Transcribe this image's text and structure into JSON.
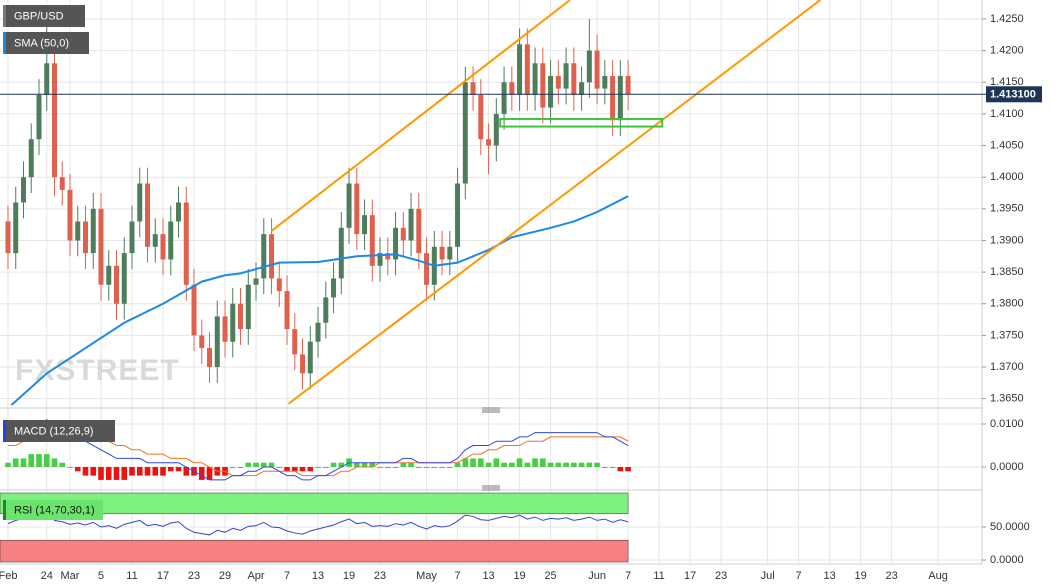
{
  "chart_data": {
    "type": "candlestick",
    "title": "GBP/USD",
    "watermark": "FXSTREET",
    "bull_color": "#4e7d5b",
    "bear_color": "#e0604e",
    "grid": true,
    "xlim": [
      -1.03,
      125.4
    ],
    "xticks": [
      {
        "value": 0,
        "label": "Feb"
      },
      {
        "value": 5,
        "label": "24"
      },
      {
        "value": 8,
        "label": "Mar"
      },
      {
        "value": 12,
        "label": "5"
      },
      {
        "value": 16,
        "label": "11"
      },
      {
        "value": 20,
        "label": "17"
      },
      {
        "value": 24,
        "label": "23"
      },
      {
        "value": 28,
        "label": "29"
      },
      {
        "value": 32,
        "label": "Apr"
      },
      {
        "value": 36,
        "label": "7"
      },
      {
        "value": 40,
        "label": "13"
      },
      {
        "value": 44,
        "label": "19"
      },
      {
        "value": 48,
        "label": "23"
      },
      {
        "value": 54,
        "label": "May"
      },
      {
        "value": 58,
        "label": "7"
      },
      {
        "value": 62,
        "label": "13"
      },
      {
        "value": 66,
        "label": "19"
      },
      {
        "value": 70,
        "label": "25"
      },
      {
        "value": 76,
        "label": "Jun"
      },
      {
        "value": 80,
        "label": "7"
      },
      {
        "value": 84,
        "label": "11"
      },
      {
        "value": 88,
        "label": "17"
      },
      {
        "value": 92,
        "label": "23"
      },
      {
        "value": 98,
        "label": "Jul"
      },
      {
        "value": 102,
        "label": "7"
      },
      {
        "value": 106,
        "label": "13"
      },
      {
        "value": 110,
        "label": "19"
      },
      {
        "value": 114,
        "label": "23"
      },
      {
        "value": 120,
        "label": "Aug"
      }
    ],
    "ylim": [
      1.364,
      1.428
    ],
    "yticks": [
      {
        "value": 1.425,
        "label": "1.4250"
      },
      {
        "value": 1.42,
        "label": "1.4200"
      },
      {
        "value": 1.415,
        "label": "1.4150"
      },
      {
        "value": 1.41,
        "label": "1.4100"
      },
      {
        "value": 1.405,
        "label": "1.4050"
      },
      {
        "value": 1.4,
        "label": "1.4000"
      },
      {
        "value": 1.395,
        "label": "1.3950"
      },
      {
        "value": 1.39,
        "label": "1.3900"
      },
      {
        "value": 1.385,
        "label": "1.3850"
      },
      {
        "value": 1.38,
        "label": "1.3800"
      },
      {
        "value": 1.375,
        "label": "1.3750"
      },
      {
        "value": 1.37,
        "label": "1.3700"
      },
      {
        "value": 1.365,
        "label": "1.3650"
      }
    ],
    "last_price": {
      "value": 1.4131,
      "label": "1.413100"
    },
    "ohlc": [
      [
        1.393,
        1.3955,
        1.3855,
        1.388
      ],
      [
        1.388,
        1.3985,
        1.3855,
        1.396
      ],
      [
        1.396,
        1.4025,
        1.3935,
        1.4
      ],
      [
        1.4,
        1.4085,
        1.3975,
        1.406
      ],
      [
        1.406,
        1.4155,
        1.4035,
        1.413
      ],
      [
        1.413,
        1.424,
        1.4105,
        1.418
      ],
      [
        1.418,
        1.4205,
        1.397,
        1.4
      ],
      [
        1.4,
        1.4025,
        1.3955,
        1.398
      ],
      [
        1.398,
        1.4005,
        1.3875,
        1.39
      ],
      [
        1.39,
        1.3955,
        1.3875,
        1.393
      ],
      [
        1.393,
        1.3955,
        1.3855,
        1.388
      ],
      [
        1.388,
        1.3975,
        1.3855,
        1.395
      ],
      [
        1.395,
        1.3975,
        1.3805,
        1.383
      ],
      [
        1.383,
        1.3885,
        1.3805,
        1.386
      ],
      [
        1.386,
        1.3885,
        1.3775,
        1.38
      ],
      [
        1.38,
        1.3905,
        1.3775,
        1.388
      ],
      [
        1.388,
        1.3955,
        1.3855,
        1.393
      ],
      [
        1.393,
        1.4015,
        1.3905,
        1.399
      ],
      [
        1.399,
        1.4015,
        1.3865,
        1.389
      ],
      [
        1.389,
        1.3935,
        1.3865,
        1.391
      ],
      [
        1.391,
        1.3935,
        1.3845,
        1.387
      ],
      [
        1.387,
        1.3955,
        1.3845,
        1.393
      ],
      [
        1.393,
        1.3985,
        1.3905,
        1.396
      ],
      [
        1.396,
        1.3985,
        1.3805,
        1.383
      ],
      [
        1.383,
        1.3855,
        1.3725,
        1.375
      ],
      [
        1.375,
        1.3775,
        1.3705,
        1.373
      ],
      [
        1.373,
        1.3755,
        1.3675,
        1.37
      ],
      [
        1.37,
        1.3805,
        1.3675,
        1.378
      ],
      [
        1.378,
        1.3805,
        1.3715,
        1.374
      ],
      [
        1.374,
        1.3825,
        1.3715,
        1.38
      ],
      [
        1.38,
        1.3825,
        1.3735,
        1.376
      ],
      [
        1.376,
        1.3855,
        1.3735,
        1.383
      ],
      [
        1.383,
        1.3865,
        1.3805,
        1.384
      ],
      [
        1.384,
        1.3935,
        1.3815,
        1.391
      ],
      [
        1.391,
        1.3935,
        1.3815,
        1.384
      ],
      [
        1.384,
        1.3865,
        1.3795,
        1.382
      ],
      [
        1.382,
        1.3845,
        1.3735,
        1.376
      ],
      [
        1.376,
        1.3785,
        1.3695,
        1.372
      ],
      [
        1.372,
        1.3745,
        1.3665,
        1.369
      ],
      [
        1.369,
        1.3765,
        1.3665,
        1.374
      ],
      [
        1.374,
        1.3795,
        1.3715,
        1.377
      ],
      [
        1.377,
        1.3835,
        1.3745,
        1.381
      ],
      [
        1.381,
        1.3865,
        1.3785,
        1.384
      ],
      [
        1.384,
        1.3945,
        1.3815,
        1.392
      ],
      [
        1.392,
        1.4015,
        1.3895,
        1.399
      ],
      [
        1.399,
        1.4015,
        1.3885,
        1.391
      ],
      [
        1.391,
        1.3965,
        1.3885,
        1.394
      ],
      [
        1.394,
        1.3965,
        1.3835,
        1.386
      ],
      [
        1.386,
        1.3905,
        1.3835,
        1.388
      ],
      [
        1.388,
        1.3905,
        1.3845,
        1.387
      ],
      [
        1.387,
        1.3945,
        1.3845,
        1.392
      ],
      [
        1.392,
        1.3945,
        1.3875,
        1.39
      ],
      [
        1.39,
        1.3975,
        1.3875,
        1.395
      ],
      [
        1.395,
        1.3975,
        1.3855,
        1.388
      ],
      [
        1.388,
        1.3905,
        1.3805,
        1.383
      ],
      [
        1.383,
        1.3915,
        1.3805,
        1.389
      ],
      [
        1.389,
        1.3915,
        1.3845,
        1.387
      ],
      [
        1.387,
        1.3915,
        1.3845,
        1.389
      ],
      [
        1.389,
        1.4015,
        1.3865,
        1.399
      ],
      [
        1.399,
        1.4175,
        1.3965,
        1.415
      ],
      [
        1.415,
        1.4175,
        1.4105,
        1.413
      ],
      [
        1.413,
        1.4155,
        1.4035,
        1.406
      ],
      [
        1.406,
        1.4085,
        1.4005,
        1.405
      ],
      [
        1.405,
        1.4125,
        1.4025,
        1.41
      ],
      [
        1.41,
        1.4175,
        1.4075,
        1.415
      ],
      [
        1.415,
        1.4175,
        1.4105,
        1.413
      ],
      [
        1.413,
        1.4235,
        1.4105,
        1.421
      ],
      [
        1.421,
        1.4235,
        1.4105,
        1.413
      ],
      [
        1.413,
        1.4205,
        1.4105,
        1.418
      ],
      [
        1.418,
        1.4205,
        1.4085,
        1.411
      ],
      [
        1.411,
        1.4185,
        1.4085,
        1.416
      ],
      [
        1.416,
        1.4185,
        1.4115,
        1.414
      ],
      [
        1.414,
        1.4205,
        1.4115,
        1.418
      ],
      [
        1.418,
        1.4205,
        1.4105,
        1.413
      ],
      [
        1.413,
        1.4175,
        1.4105,
        1.415
      ],
      [
        1.415,
        1.425,
        1.4125,
        1.42
      ],
      [
        1.42,
        1.4225,
        1.4115,
        1.414
      ],
      [
        1.414,
        1.4185,
        1.4115,
        1.416
      ],
      [
        1.416,
        1.4185,
        1.4065,
        1.409
      ],
      [
        1.409,
        1.4185,
        1.4065,
        1.416
      ],
      [
        1.416,
        1.4185,
        1.4106,
        1.4131
      ]
    ],
    "sma": {
      "name": "SMA (50,0)",
      "color": "#1e88e5",
      "x": [
        0,
        5,
        10,
        15,
        20,
        25,
        28,
        30,
        35,
        40,
        45,
        50,
        53,
        55,
        58,
        62,
        65,
        70,
        73,
        76,
        80
      ],
      "values": [
        1.3635,
        1.369,
        1.373,
        1.377,
        1.38,
        1.3835,
        1.3845,
        1.3848,
        1.3865,
        1.3866,
        1.3875,
        1.3878,
        1.3868,
        1.386,
        1.3865,
        1.3885,
        1.3905,
        1.392,
        1.393,
        1.3945,
        1.397
      ]
    },
    "trendlines": [
      {
        "color": "#ff9800",
        "x": [
          34,
          72.5
        ],
        "y": [
          1.3915,
          1.428
        ]
      },
      {
        "color": "#ff9800",
        "x": [
          36.2,
          104.8
        ],
        "y": [
          1.3642,
          1.428
        ]
      }
    ],
    "zone": {
      "color": "#3cc43c",
      "x": [
        63.5,
        84.4
      ],
      "y": [
        1.408,
        1.4092
      ]
    },
    "macd": {
      "name": "MACD (12,26,9)",
      "ylim": [
        -0.00465,
        0.01256
      ],
      "yticks": [
        {
          "value": 0.01,
          "label": "0.0100"
        },
        {
          "value": 0,
          "label": "0.0000"
        }
      ],
      "macd_color": "#3048e0",
      "signal_color": "#f07020",
      "up_color": "#44d044",
      "down_color": "#ee1111",
      "macd": [
        0.006,
        0.007,
        0.008,
        0.009,
        0.01,
        0.011,
        0.01,
        0.009,
        0.008,
        0.007,
        0.006,
        0.005,
        0.004,
        0.003,
        0.002,
        0.002,
        0.002,
        0.002,
        0.001,
        0.001,
        0.001,
        0.001,
        0.001,
        0.0,
        -0.001,
        -0.002,
        -0.003,
        -0.003,
        -0.003,
        -0.002,
        -0.002,
        -0.001,
        -0.001,
        0.0,
        0.0,
        -0.001,
        -0.002,
        -0.002,
        -0.003,
        -0.003,
        -0.002,
        -0.002,
        -0.001,
        0.0,
        0.001,
        0.001,
        0.001,
        0.001,
        0.001,
        0.001,
        0.001,
        0.002,
        0.002,
        0.001,
        0.001,
        0.001,
        0.001,
        0.001,
        0.002,
        0.004,
        0.005,
        0.005,
        0.005,
        0.006,
        0.006,
        0.006,
        0.007,
        0.007,
        0.008,
        0.008,
        0.008,
        0.008,
        0.008,
        0.008,
        0.008,
        0.008,
        0.008,
        0.007,
        0.007,
        0.006,
        0.005
      ],
      "signal": [
        0.005,
        0.005,
        0.006,
        0.006,
        0.007,
        0.008,
        0.008,
        0.008,
        0.008,
        0.008,
        0.008,
        0.007,
        0.007,
        0.006,
        0.005,
        0.005,
        0.004,
        0.004,
        0.003,
        0.003,
        0.003,
        0.002,
        0.002,
        0.002,
        0.001,
        0.001,
        0.0,
        -0.001,
        -0.001,
        -0.002,
        -0.002,
        -0.002,
        -0.002,
        -0.001,
        -0.001,
        -0.001,
        -0.001,
        -0.001,
        -0.002,
        -0.002,
        -0.002,
        -0.002,
        -0.002,
        -0.001,
        -0.001,
        0.0,
        0.0,
        0.0,
        0.001,
        0.001,
        0.001,
        0.001,
        0.001,
        0.001,
        0.001,
        0.001,
        0.001,
        0.001,
        0.001,
        0.002,
        0.003,
        0.003,
        0.004,
        0.004,
        0.005,
        0.005,
        0.005,
        0.006,
        0.006,
        0.006,
        0.007,
        0.007,
        0.007,
        0.007,
        0.007,
        0.007,
        0.007,
        0.007,
        0.007,
        0.007,
        0.006
      ],
      "hist": [
        0.001,
        0.002,
        0.002,
        0.003,
        0.003,
        0.003,
        0.002,
        0.001,
        0,
        -0.001,
        -0.002,
        -0.002,
        -0.003,
        -0.003,
        -0.003,
        -0.003,
        -0.002,
        -0.002,
        -0.002,
        -0.002,
        -0.002,
        -0.001,
        -0.001,
        -0.002,
        -0.002,
        -0.003,
        -0.003,
        -0.002,
        -0.002,
        0,
        0,
        0.001,
        0.001,
        0.001,
        0.001,
        0,
        -0.001,
        -0.001,
        -0.001,
        -0.001,
        0,
        0,
        0.001,
        0.001,
        0.002,
        0.001,
        0.001,
        0.001,
        0,
        0,
        0,
        0.001,
        0.001,
        0,
        0,
        0,
        0,
        0,
        0.001,
        0.002,
        0.002,
        0.002,
        0.001,
        0.002,
        0.001,
        0.001,
        0.002,
        0.001,
        0.002,
        0.002,
        0.001,
        0.001,
        0.001,
        0.001,
        0.001,
        0.001,
        0.001,
        0,
        0,
        -0.001,
        -0.001
      ]
    },
    "rsi": {
      "name": "RSI (14,70,30,1)",
      "ylim": [
        -3,
        101.5
      ],
      "yticks": [
        {
          "value": 50,
          "label": "50.0000"
        },
        {
          "value": 0,
          "label": "0.0000"
        }
      ],
      "overbought": 70,
      "oversold": 30,
      "color": "#3344cc",
      "overbought_color": "#7ef07e",
      "oversold_color": "#f88080",
      "values": [
        55,
        60,
        63,
        66,
        70,
        72,
        60,
        58,
        54,
        56,
        53,
        57,
        50,
        52,
        48,
        54,
        57,
        60,
        52,
        54,
        51,
        56,
        58,
        48,
        42,
        40,
        38,
        45,
        42,
        48,
        45,
        51,
        52,
        57,
        50,
        49,
        44,
        41,
        39,
        44,
        47,
        50,
        53,
        58,
        62,
        55,
        57,
        51,
        52,
        51,
        55,
        53,
        57,
        51,
        47,
        52,
        50,
        52,
        59,
        68,
        66,
        61,
        60,
        63,
        66,
        64,
        68,
        62,
        65,
        60,
        63,
        62,
        64,
        60,
        62,
        65,
        60,
        62,
        57,
        61,
        58
      ]
    }
  }
}
